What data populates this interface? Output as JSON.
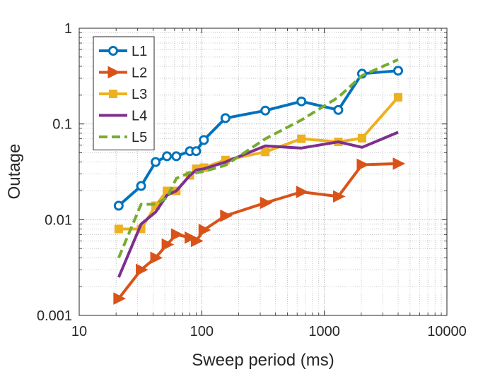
{
  "chart_data": {
    "type": "line",
    "title": "",
    "xlabel": "Sweep period (ms)",
    "ylabel": "Outage",
    "xscale": "log",
    "yscale": "log",
    "xlim": [
      10,
      10000
    ],
    "ylim": [
      0.001,
      1
    ],
    "grid": true,
    "legend_position": "top-left",
    "x_ticks": [
      10,
      100,
      1000,
      10000
    ],
    "x_tick_labels": [
      "10",
      "100",
      "1000",
      "10000"
    ],
    "y_ticks": [
      0.001,
      0.01,
      0.1,
      1
    ],
    "y_tick_labels": [
      "0.001",
      "0.01",
      "0.1",
      "1"
    ],
    "series": [
      {
        "name": "L1",
        "color": "#0072BD",
        "marker": "circle",
        "line": "solid",
        "points": [
          [
            21,
            0.014
          ],
          [
            32,
            0.0225
          ],
          [
            42,
            0.04
          ],
          [
            52,
            0.046
          ],
          [
            62,
            0.046
          ],
          [
            80,
            0.052
          ],
          [
            90,
            0.052
          ],
          [
            104,
            0.068
          ],
          [
            156,
            0.115
          ],
          [
            330,
            0.138
          ],
          [
            650,
            0.172
          ],
          [
            1300,
            0.14
          ],
          [
            2030,
            0.335
          ],
          [
            4000,
            0.36
          ]
        ]
      },
      {
        "name": "L2",
        "color": "#D95319",
        "marker": "triangle-right",
        "line": "solid",
        "points": [
          [
            21,
            0.0015
          ],
          [
            32,
            0.003
          ],
          [
            42,
            0.004
          ],
          [
            52,
            0.0055
          ],
          [
            62,
            0.007
          ],
          [
            80,
            0.0065
          ],
          [
            90,
            0.006
          ],
          [
            104,
            0.0078
          ],
          [
            156,
            0.011
          ],
          [
            330,
            0.015
          ],
          [
            650,
            0.0195
          ],
          [
            1300,
            0.0175
          ],
          [
            2030,
            0.0375
          ],
          [
            4000,
            0.0385
          ]
        ]
      },
      {
        "name": "L3",
        "color": "#EDB120",
        "marker": "square",
        "line": "solid",
        "points": [
          [
            21,
            0.008
          ],
          [
            32,
            0.008
          ],
          [
            42,
            0.014
          ],
          [
            52,
            0.02
          ],
          [
            62,
            0.02
          ],
          [
            80,
            0.029
          ],
          [
            90,
            0.034
          ],
          [
            104,
            0.035
          ],
          [
            156,
            0.042
          ],
          [
            330,
            0.051
          ],
          [
            650,
            0.07
          ],
          [
            1300,
            0.065
          ],
          [
            2030,
            0.071
          ],
          [
            4000,
            0.19
          ]
        ]
      },
      {
        "name": "L4",
        "color": "#7E2F8E",
        "marker": "none",
        "line": "solid",
        "points": [
          [
            21,
            0.0025
          ],
          [
            32,
            0.009
          ],
          [
            42,
            0.012
          ],
          [
            52,
            0.018
          ],
          [
            62,
            0.02
          ],
          [
            80,
            0.029
          ],
          [
            90,
            0.033
          ],
          [
            104,
            0.034
          ],
          [
            156,
            0.04
          ],
          [
            330,
            0.059
          ],
          [
            650,
            0.056
          ],
          [
            1300,
            0.065
          ],
          [
            2030,
            0.057
          ],
          [
            4000,
            0.082
          ]
        ]
      },
      {
        "name": "L5",
        "color": "#77AC30",
        "marker": "none",
        "line": "dashed",
        "points": [
          [
            21,
            0.004
          ],
          [
            32,
            0.0145
          ],
          [
            42,
            0.0145
          ],
          [
            52,
            0.017
          ],
          [
            62,
            0.027
          ],
          [
            80,
            0.031
          ],
          [
            90,
            0.031
          ],
          [
            104,
            0.032
          ],
          [
            156,
            0.037
          ],
          [
            330,
            0.07
          ],
          [
            650,
            0.11
          ],
          [
            1300,
            0.19
          ],
          [
            2030,
            0.32
          ],
          [
            4000,
            0.47
          ]
        ]
      }
    ]
  }
}
